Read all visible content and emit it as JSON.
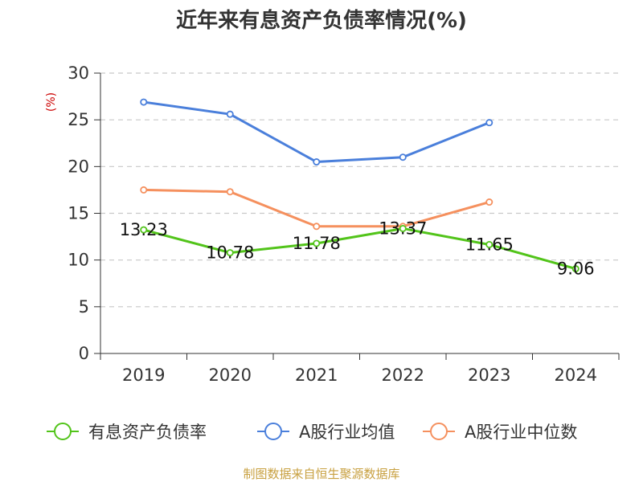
{
  "chart_data": {
    "type": "line",
    "title": "近年来有息资产负债率情况(%)",
    "ylabel": "(%)",
    "categories": [
      "2019",
      "2020",
      "2021",
      "2022",
      "2023",
      "2024"
    ],
    "ylim": [
      0,
      30
    ],
    "yticks": [
      "0",
      "5",
      "10",
      "15",
      "20",
      "25",
      "30"
    ],
    "grid": true,
    "legend_position": "bottom",
    "series": [
      {
        "name": "有息资产负债率",
        "color": "#52c41a",
        "values": [
          13.23,
          10.78,
          11.78,
          13.37,
          11.65,
          9.06
        ],
        "labels": [
          "13.23",
          "10.78",
          "11.78",
          "13.37",
          "11.65",
          "9.06"
        ],
        "show_labels": true
      },
      {
        "name": "A股行业均值",
        "color": "#4a7fdb",
        "values": [
          26.9,
          25.6,
          20.5,
          21.0,
          24.7,
          null
        ],
        "show_labels": false
      },
      {
        "name": "A股行业中位数",
        "color": "#f5905e",
        "values": [
          17.5,
          17.3,
          13.6,
          13.6,
          16.2,
          null
        ],
        "show_labels": false
      }
    ],
    "unit_color": "#cc0000",
    "source_text": "制图数据来自恒生聚源数据库",
    "source_color": "#c8a040"
  }
}
